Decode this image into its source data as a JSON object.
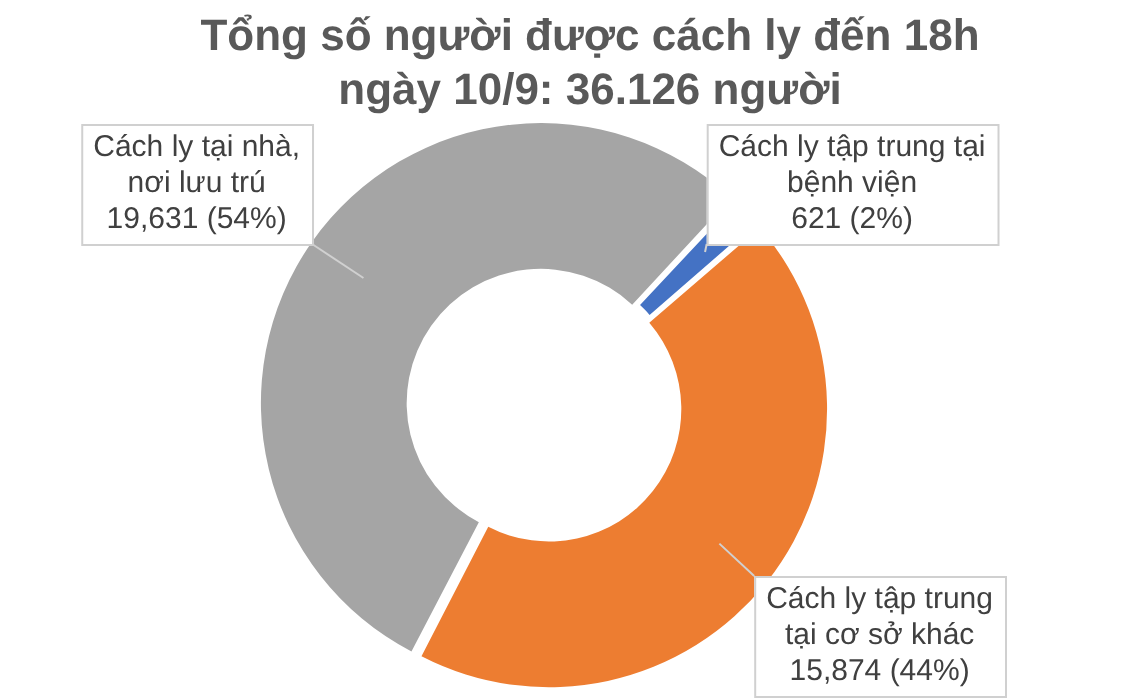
{
  "chart_data": {
    "type": "donut",
    "title": "Tổng số người được cách ly đến 18h ngày 10/9: 36.126 người",
    "categories": [
      "Cách ly tập trung tại bệnh viện",
      "Cách ly tập trung tại cơ sở khác",
      "Cách ly tại nhà, nơi lưu trú"
    ],
    "values": [
      621,
      15874,
      19631
    ],
    "colors": [
      "#4472c4",
      "#ed7d31",
      "#a5a5a5"
    ],
    "value_labels": [
      "621 (2%)",
      "15,874 (44%)",
      "19,631 (54%)"
    ],
    "legend": false
  }
}
